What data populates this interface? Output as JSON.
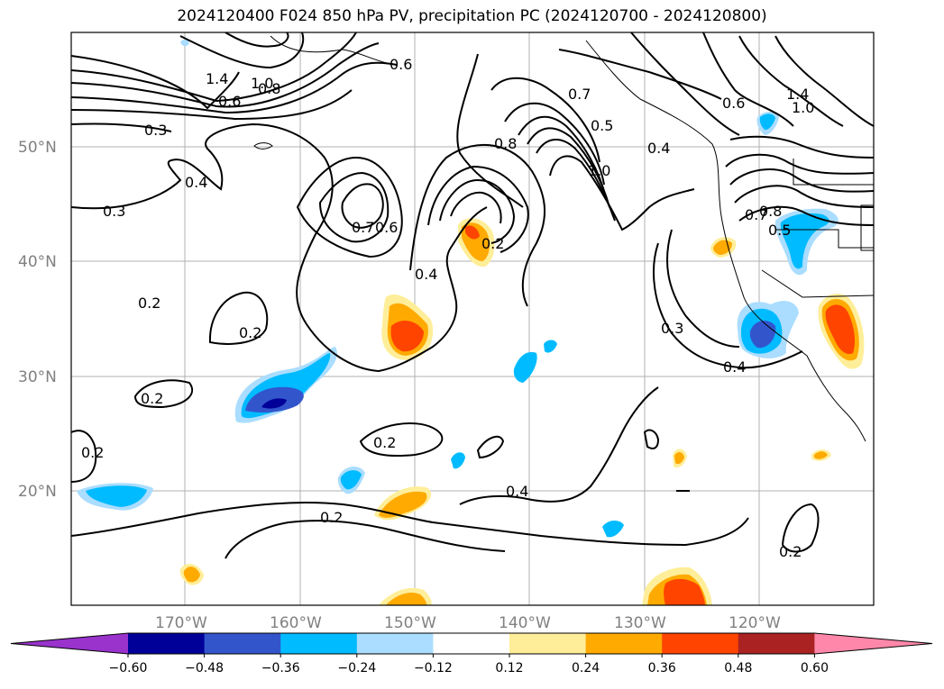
{
  "title": "2024120400 F024 850 hPa PV, precipitation PC (2024120700 - 2024120800)",
  "axes": {
    "lat_labels": [
      "50°N",
      "40°N",
      "30°N",
      "20°N"
    ],
    "lon_labels": [
      "170°W",
      "160°W",
      "150°W",
      "140°W",
      "130°W",
      "120°W"
    ]
  },
  "contour_labels": [
    "1.4",
    "1.0",
    "0.8",
    "0.6",
    "0.3",
    "0.6",
    "0.4",
    "0.3",
    "0.7",
    "0.6",
    "0.8",
    "0.7",
    "0.5",
    "1.0",
    "0.6",
    "1.4",
    "1.0",
    "0.4",
    "0.7",
    "0.8",
    "0.5",
    "0.2",
    "0.4",
    "0.2",
    "0.2",
    "0.3",
    "0.4",
    "0.2",
    "0.2",
    "0.2",
    "0.4",
    "0.2",
    "0.2"
  ],
  "colorbar": {
    "colors": [
      "#9933cc",
      "#000099",
      "#3355cc",
      "#00bbff",
      "#aaddff",
      "#ffffff",
      "#ffee99",
      "#ffaa00",
      "#ff4400",
      "#aa2222",
      "#ff88aa"
    ],
    "tick_labels": [
      "−0.60",
      "−0.48",
      "−0.36",
      "−0.24",
      "−0.12",
      "0.12",
      "0.24",
      "0.36",
      "0.48",
      "0.60"
    ]
  }
}
